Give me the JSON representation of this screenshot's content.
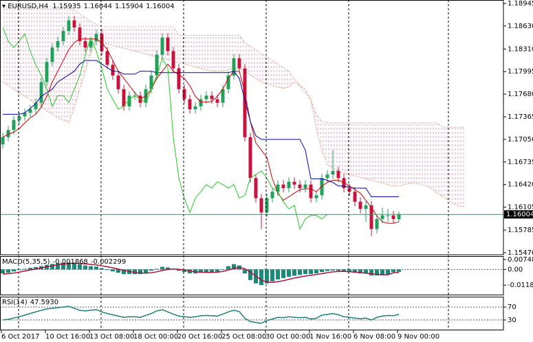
{
  "chart_data": {
    "type": "candlestick",
    "symbol": "EURUSD,H4",
    "categories": [
      "6 Oct 2017",
      null,
      null,
      null,
      null,
      null,
      null,
      null,
      "10 Oct 16:00",
      null,
      null,
      null,
      null,
      null,
      null,
      null,
      "13 Oct 08:00",
      null,
      null,
      null,
      null,
      null,
      null,
      null,
      "18 Oct 00:00",
      null,
      null,
      null,
      null,
      null,
      null,
      null,
      "20 Oct 16:00",
      null,
      null,
      null,
      null,
      null,
      null,
      null,
      "25 Oct 08:00",
      null,
      null,
      null,
      null,
      null,
      null,
      null,
      "30 Oct 00:00",
      null,
      null,
      null,
      null,
      null,
      null,
      null,
      "1 Nov 16:00",
      null,
      null,
      null,
      null,
      null,
      null,
      null,
      "6 Nov 08:00",
      null,
      null,
      null,
      null,
      null,
      null,
      null,
      "9 Nov 00:00",
      null,
      null,
      null,
      null,
      null,
      null,
      null,
      null,
      null,
      null,
      null,
      null
    ],
    "open": [
      1.1698,
      1.1708,
      1.1718,
      1.1732,
      1.1737,
      1.1742,
      1.1747,
      1.1756,
      1.1785,
      1.1813,
      1.1833,
      1.1842,
      1.1856,
      1.1871,
      1.1861,
      1.1842,
      1.1833,
      1.1842,
      1.1852,
      1.1828,
      1.1809,
      1.1794,
      1.1775,
      1.1751,
      1.1766,
      1.1766,
      1.1756,
      1.1775,
      1.1794,
      1.1823,
      1.1847,
      1.1828,
      1.1804,
      1.1775,
      1.1761,
      1.1747,
      1.1751,
      1.1761,
      1.1766,
      1.1761,
      1.1756,
      1.1775,
      1.1794,
      1.1818,
      1.1804,
      1.1708,
      1.1651,
      1.1623,
      1.1603,
      1.1623,
      1.1632,
      1.1642,
      1.1637,
      1.1646,
      1.1642,
      1.1637,
      1.1642,
      1.1623,
      1.1627,
      1.1651,
      1.1656,
      1.1661,
      1.1651,
      1.1637,
      1.1632,
      1.1618,
      1.1608,
      1.1613,
      1.158,
      1.1594,
      1.1599,
      1.1599,
      1.15935,
      null,
      null,
      null,
      null,
      null,
      null,
      null,
      null,
      null,
      null,
      null,
      null
    ],
    "high": [
      1.1714,
      1.1724,
      1.1738,
      1.1743,
      1.1748,
      1.1753,
      1.1762,
      1.1791,
      1.1819,
      1.1839,
      1.1848,
      1.1862,
      1.1877,
      1.1877,
      1.1867,
      1.1848,
      1.1848,
      1.1858,
      1.1858,
      1.1834,
      1.1815,
      1.18,
      1.1781,
      1.1772,
      1.1772,
      1.1772,
      1.1781,
      1.18,
      1.1829,
      1.1853,
      1.1853,
      1.1834,
      1.181,
      1.1781,
      1.1767,
      1.1757,
      1.1767,
      1.1772,
      1.1772,
      1.1767,
      1.1781,
      1.18,
      1.1824,
      1.1824,
      1.181,
      1.1714,
      1.1657,
      1.1629,
      1.1629,
      1.1638,
      1.1648,
      1.1648,
      1.1652,
      1.1652,
      1.1648,
      1.1648,
      1.1648,
      1.1633,
      1.1657,
      1.1662,
      1.169,
      1.1667,
      1.1657,
      1.1643,
      1.1638,
      1.1624,
      1.1619,
      1.1619,
      1.16,
      1.161,
      1.1608,
      1.1605,
      1.16044,
      null,
      null,
      null,
      null,
      null,
      null,
      null,
      null,
      null,
      null,
      null,
      null
    ],
    "low": [
      1.1692,
      1.1702,
      1.1712,
      1.1726,
      1.1731,
      1.1736,
      1.1741,
      1.175,
      1.1779,
      1.1807,
      1.1827,
      1.1836,
      1.185,
      1.1855,
      1.1836,
      1.1827,
      1.1827,
      1.1836,
      1.1822,
      1.1803,
      1.1788,
      1.1769,
      1.1745,
      1.1745,
      1.176,
      1.175,
      1.175,
      1.1769,
      1.1788,
      1.1817,
      1.1822,
      1.1798,
      1.1769,
      1.1755,
      1.1741,
      1.1741,
      1.1745,
      1.1755,
      1.1755,
      1.175,
      1.175,
      1.1769,
      1.1788,
      1.1798,
      1.1702,
      1.1645,
      1.1617,
      1.158,
      1.1597,
      1.1617,
      1.1626,
      1.1631,
      1.1631,
      1.1636,
      1.1631,
      1.1631,
      1.1617,
      1.1617,
      1.1621,
      1.1645,
      1.165,
      1.1645,
      1.1631,
      1.1626,
      1.1612,
      1.1602,
      1.159,
      1.157,
      1.1574,
      1.1588,
      1.159,
      1.1588,
      1.15904,
      null,
      null,
      null,
      null,
      null,
      null,
      null,
      null,
      null,
      null,
      null,
      null
    ],
    "close": [
      1.1708,
      1.1718,
      1.1732,
      1.1737,
      1.1742,
      1.1747,
      1.1756,
      1.1785,
      1.1813,
      1.1833,
      1.1842,
      1.1856,
      1.1871,
      1.1861,
      1.1842,
      1.1833,
      1.1842,
      1.1852,
      1.1828,
      1.1809,
      1.1794,
      1.1775,
      1.1751,
      1.1766,
      1.1766,
      1.1756,
      1.1775,
      1.1794,
      1.1823,
      1.1847,
      1.1828,
      1.1804,
      1.1775,
      1.1761,
      1.1747,
      1.1751,
      1.1761,
      1.1766,
      1.1761,
      1.1756,
      1.1775,
      1.1794,
      1.1818,
      1.1804,
      1.1708,
      1.1651,
      1.1623,
      1.1603,
      1.1623,
      1.1632,
      1.1642,
      1.1637,
      1.1646,
      1.1642,
      1.1637,
      1.1642,
      1.1623,
      1.1627,
      1.1651,
      1.1656,
      1.1661,
      1.1651,
      1.1637,
      1.1632,
      1.1618,
      1.1608,
      1.1613,
      1.158,
      1.1594,
      1.1599,
      1.1599,
      1.1594,
      1.16004,
      null,
      null,
      null,
      null,
      null,
      null,
      null,
      null,
      null,
      null,
      null,
      null
    ],
    "bull_color": "#23a05a",
    "bear_color": "#c8143c",
    "price_line_color": "#4a8a6a",
    "ylim": [
      1.15441,
      1.18993
    ],
    "yticks": [
      1.18945,
      {
        "value": 1.1863,
        "label": "1.18630"
      },
      {
        "value": 1.1831,
        "label": "1.18310"
      },
      1.17995,
      {
        "value": 1.1768,
        "label": "1.17680"
      },
      1.17365,
      {
        "value": 1.1705,
        "label": "1.17050"
      },
      1.16735,
      {
        "value": 1.1642,
        "label": "1.16420"
      },
      1.16105,
      1.15785,
      {
        "value": 1.1547,
        "label": "1.15470"
      }
    ],
    "cloud": {
      "fill": "#d9a6bf",
      "span_a": {
        "color": "#e0906a",
        "values": [
          1.1785,
          1.178,
          1.1775,
          1.177,
          1.1765,
          1.176,
          1.1755,
          1.175,
          1.1745,
          1.174,
          1.1735,
          1.1732,
          1.1728,
          1.175,
          1.1775,
          1.18,
          1.1825,
          1.1842,
          1.184,
          1.1838,
          1.1836,
          1.1834,
          1.1832,
          1.183,
          1.1828,
          1.1826,
          1.1824,
          1.1822,
          1.182,
          1.1818,
          1.1816,
          1.1814,
          1.1812,
          1.181,
          1.1808,
          1.1806,
          1.1804,
          1.1802,
          1.18,
          1.18,
          1.18,
          1.1802,
          1.1804,
          1.1804,
          1.18,
          1.1795,
          1.179,
          1.1785,
          1.1782,
          1.178,
          1.1778,
          1.1776,
          1.1778,
          1.1785,
          1.178,
          1.1775,
          1.176,
          1.172,
          1.169,
          1.167,
          1.1665,
          1.166,
          1.1658,
          1.1656,
          1.1654,
          1.1652,
          1.165,
          1.1648,
          1.1646,
          1.1644,
          1.1642,
          1.164,
          1.164,
          1.1642,
          1.1644,
          1.1644,
          1.1642,
          1.164,
          1.1636,
          1.163,
          1.1625,
          1.162,
          1.1615,
          1.1612,
          1.1611
        ]
      },
      "span_b": {
        "color": "#c9a0b8",
        "values": [
          1.189,
          1.189,
          1.189,
          1.189,
          1.189,
          1.189,
          1.189,
          1.189,
          1.189,
          1.189,
          1.189,
          1.189,
          1.189,
          1.1885,
          1.188,
          1.1875,
          1.187,
          1.1865,
          1.1862,
          1.1862,
          1.1862,
          1.1862,
          1.1862,
          1.1862,
          1.1862,
          1.1862,
          1.1862,
          1.1862,
          1.1862,
          1.1862,
          1.1862,
          1.1862,
          1.185,
          1.185,
          1.185,
          1.185,
          1.185,
          1.185,
          1.185,
          1.185,
          1.185,
          1.185,
          1.185,
          1.185,
          1.184,
          1.1835,
          1.183,
          1.1825,
          1.182,
          1.1815,
          1.181,
          1.1805,
          1.18,
          1.179,
          1.178,
          1.177,
          1.176,
          1.174,
          1.173,
          1.1728,
          1.1728,
          1.1728,
          1.1728,
          1.1728,
          1.1728,
          1.1728,
          1.1728,
          1.1728,
          1.1728,
          1.1728,
          1.1728,
          1.1728,
          1.1728,
          1.1728,
          1.1728,
          1.1728,
          1.1728,
          1.1728,
          1.1728,
          1.1728,
          1.1722,
          1.1722,
          1.1722,
          1.1722,
          1.1722
        ]
      }
    },
    "lines": [
      {
        "color": "#d00000",
        "values": [
          1.1708,
          1.1712,
          1.1715,
          1.172,
          1.1728,
          1.1735,
          1.174,
          1.175,
          1.1765,
          1.1785,
          1.18,
          1.1815,
          1.183,
          1.184,
          1.1845,
          1.1845,
          1.1845,
          1.1845,
          1.184,
          1.183,
          1.1815,
          1.18,
          1.179,
          1.178,
          1.177,
          1.1762,
          1.1765,
          1.1775,
          1.179,
          1.18,
          1.181,
          1.18,
          1.1795,
          1.179,
          1.178,
          1.1765,
          1.1757,
          1.1757,
          1.1758,
          1.1765,
          1.1775,
          1.179,
          1.18,
          1.18,
          1.177,
          1.173,
          1.17,
          1.169,
          1.168,
          1.165,
          1.163,
          1.162,
          1.1625,
          1.163,
          1.1635,
          1.1636,
          1.1636,
          1.1632,
          1.164,
          1.1645,
          1.1648,
          1.1648,
          1.1645,
          1.164,
          1.1635,
          1.163,
          1.162,
          1.161,
          1.1598,
          1.159,
          1.1588,
          1.1588,
          1.159,
          null,
          null,
          null,
          null,
          null,
          null,
          null,
          null,
          null,
          null,
          null,
          null
        ]
      },
      {
        "color": "#0000b4",
        "values": [
          1.174,
          1.174,
          1.174,
          1.174,
          1.1742,
          1.1748,
          1.1755,
          1.1765,
          1.177,
          1.1775,
          1.1785,
          1.179,
          1.1795,
          1.18,
          1.181,
          1.1815,
          1.1815,
          1.1815,
          1.181,
          1.1805,
          1.18,
          1.18,
          1.1796,
          1.1796,
          1.1796,
          1.18,
          1.18,
          1.18,
          1.1798,
          1.1798,
          1.1798,
          1.1798,
          1.1798,
          1.1798,
          1.1798,
          1.1798,
          1.1798,
          1.1798,
          1.1798,
          1.1798,
          1.1798,
          1.1798,
          1.18,
          1.179,
          1.176,
          1.173,
          1.171,
          1.1705,
          1.1705,
          1.1705,
          1.1705,
          1.1705,
          1.1705,
          1.1705,
          1.1705,
          1.169,
          1.165,
          1.165,
          1.165,
          1.1648,
          1.1645,
          1.164,
          1.164,
          1.1638,
          1.1637,
          1.1637,
          1.1637,
          1.1625,
          1.1625,
          1.1625,
          1.1625,
          1.1625,
          1.1625,
          null,
          null,
          null,
          null,
          null,
          null,
          null,
          null,
          null,
          null,
          null,
          null
        ]
      },
      {
        "color": "#22c922",
        "values": [
          1.1861,
          1.1842,
          1.1833,
          1.1842,
          1.1852,
          1.1828,
          1.1809,
          1.1794,
          1.1775,
          1.1751,
          1.1766,
          1.1766,
          1.1756,
          1.1775,
          1.1794,
          1.1823,
          1.1847,
          1.1828,
          1.1804,
          1.1775,
          1.1761,
          1.1747,
          1.1751,
          1.1761,
          1.1766,
          1.1761,
          1.1756,
          1.1775,
          1.1794,
          1.1818,
          1.1804,
          1.1708,
          1.1651,
          1.1623,
          1.1603,
          1.1623,
          1.1632,
          1.1642,
          1.1637,
          1.1646,
          1.1642,
          1.1637,
          1.1642,
          1.1623,
          1.1627,
          1.1651,
          1.1656,
          1.1661,
          1.1651,
          1.1637,
          1.1632,
          1.1618,
          1.1608,
          1.1613,
          1.158,
          1.1594,
          1.1599,
          1.1599,
          1.1594,
          1.16004,
          null,
          null,
          null,
          null,
          null,
          null,
          null,
          null,
          null,
          null,
          null,
          null,
          null,
          null,
          null,
          null,
          null,
          null,
          null,
          null,
          null,
          null,
          null,
          null,
          null
        ]
      }
    ],
    "macd": {
      "title": "MACD(5,35,5)",
      "ylim": [
        -0.0195,
        0.0095
      ],
      "yticks": [
        0.00748,
        {
          "value": 0,
          "label": "0.00"
        },
        -0.01183
      ],
      "histogram": {
        "color": "#1b8a7a",
        "values": [
          -0.003,
          -0.0025,
          -0.0015,
          -0.0005,
          0.0005,
          0.0012,
          0.0018,
          0.0025,
          0.0035,
          0.0042,
          0.0046,
          0.005,
          0.0052,
          0.0048,
          0.004,
          0.003,
          0.0025,
          0.0022,
          0.001,
          -0.0005,
          -0.0015,
          -0.0025,
          -0.0035,
          -0.0035,
          -0.0035,
          -0.0035,
          -0.0025,
          -0.001,
          0.0005,
          0.002,
          0.0015,
          0.0005,
          -0.001,
          -0.002,
          -0.003,
          -0.003,
          -0.0025,
          -0.0022,
          -0.002,
          -0.0018,
          0.0,
          0.0025,
          0.004,
          0.003,
          -0.003,
          -0.008,
          -0.0105,
          -0.0118,
          -0.0105,
          -0.009,
          -0.0075,
          -0.0065,
          -0.0055,
          -0.0048,
          -0.0042,
          -0.0035,
          -0.0035,
          -0.003,
          -0.002,
          -0.0012,
          -0.0008,
          -0.001,
          -0.0015,
          -0.002,
          -0.0025,
          -0.003,
          -0.0032,
          -0.0045,
          -0.0045,
          -0.004,
          -0.0038,
          -0.002,
          -0.001868,
          null,
          null,
          null,
          null,
          null,
          null,
          null,
          null,
          null,
          null,
          null,
          null
        ]
      },
      "signal": {
        "color": "#b0103a",
        "values": [
          -0.0035,
          -0.0032,
          -0.0027,
          -0.002,
          -0.0012,
          -0.0004,
          0.0004,
          0.0012,
          0.002,
          0.0028,
          0.0035,
          0.004,
          0.0045,
          0.0047,
          0.0046,
          0.0042,
          0.0038,
          0.0034,
          0.0028,
          0.002,
          0.0012,
          0.0003,
          -0.0007,
          -0.0015,
          -0.0022,
          -0.0027,
          -0.0028,
          -0.0025,
          -0.0018,
          -0.0008,
          0.0,
          0.0004,
          0.0001,
          -0.0005,
          -0.0012,
          -0.0018,
          -0.0021,
          -0.0022,
          -0.0022,
          -0.0021,
          -0.0015,
          -0.0005,
          0.0008,
          0.0015,
          0.0005,
          -0.002,
          -0.005,
          -0.008,
          -0.0095,
          -0.0098,
          -0.0092,
          -0.0085,
          -0.0075,
          -0.0065,
          -0.0057,
          -0.005,
          -0.0044,
          -0.0038,
          -0.0032,
          -0.0025,
          -0.0018,
          -0.0015,
          -0.0015,
          -0.0017,
          -0.002,
          -0.0024,
          -0.0028,
          -0.0033,
          -0.0038,
          -0.004,
          -0.004,
          -0.0025,
          -0.002299,
          null,
          null,
          null,
          null,
          null,
          null,
          null,
          null,
          null,
          null,
          null,
          null
        ]
      }
    },
    "rsi": {
      "title": "RSI(14)",
      "color": "#1b7f7a",
      "value_label": "47.5930",
      "ylim": [
        0,
        100
      ],
      "yticks": [
        70,
        30
      ],
      "values": [
        30,
        32,
        36,
        40,
        45,
        50,
        55,
        60,
        64,
        66,
        68,
        70,
        72,
        66,
        60,
        58,
        60,
        62,
        55,
        50,
        46,
        42,
        38,
        40,
        40,
        38,
        44,
        50,
        58,
        62,
        55,
        48,
        42,
        40,
        38,
        40,
        43,
        44,
        43,
        42,
        48,
        55,
        60,
        56,
        35,
        25,
        22,
        20,
        28,
        33,
        38,
        37,
        40,
        38,
        37,
        38,
        33,
        35,
        45,
        47,
        50,
        46,
        40,
        38,
        36,
        34,
        36,
        30,
        38,
        42,
        44,
        43,
        47.593,
        null,
        null,
        null,
        null,
        null,
        null,
        null,
        null,
        null,
        null,
        null,
        null
      ]
    }
  }
}
